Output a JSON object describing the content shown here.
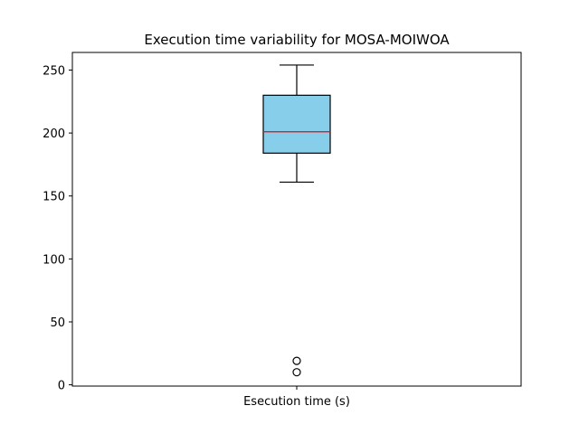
{
  "chart_data": {
    "type": "box",
    "title": "Execution time variability for MOSA-MOIWOA",
    "categories": [
      "Esecution time (s)"
    ],
    "ylim": [
      -1,
      264
    ],
    "yticks": [
      0,
      50,
      100,
      150,
      200,
      250
    ],
    "boxes": [
      {
        "category": "Esecution time (s)",
        "whisker_low": 161,
        "q1": 184,
        "median": 201,
        "q3": 230,
        "whisker_high": 254,
        "outliers": [
          19,
          10
        ]
      }
    ],
    "grid": false,
    "colors": {
      "box_fill": "#87ceeb",
      "median_line": "#ff0000",
      "edge": "#000000"
    }
  }
}
